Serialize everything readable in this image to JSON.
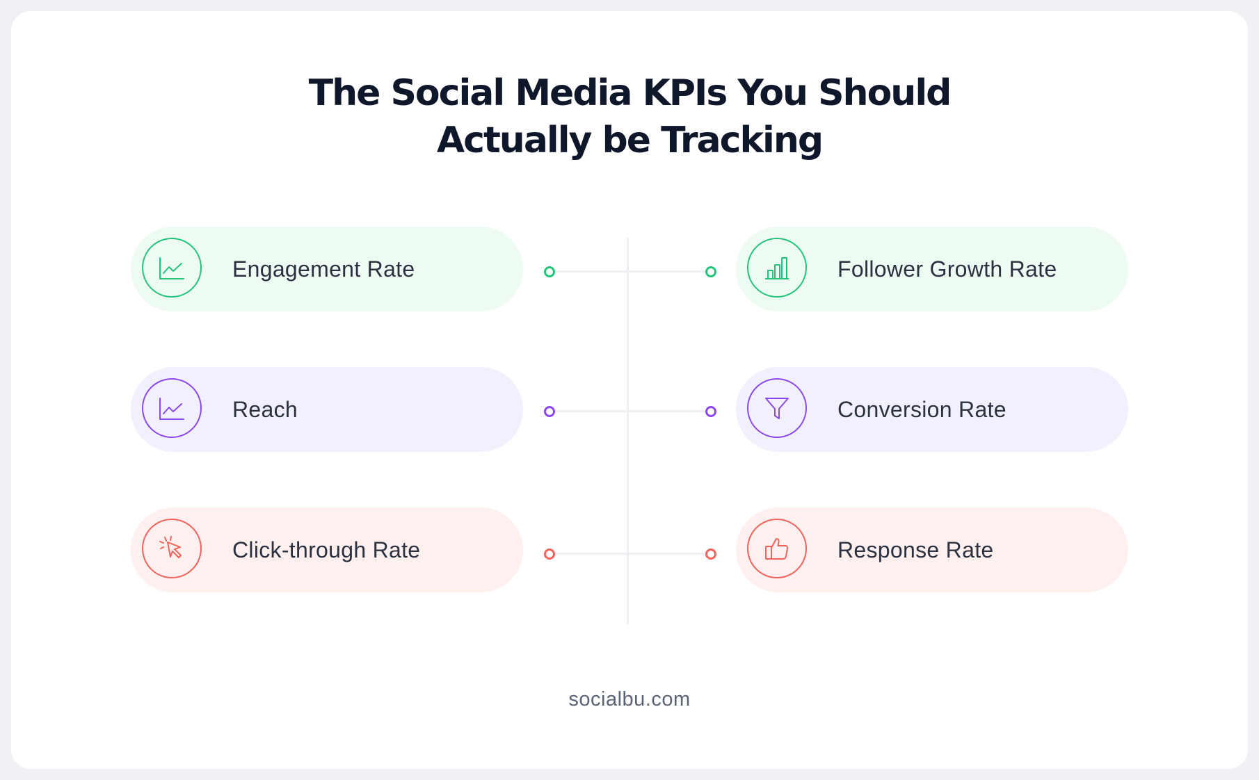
{
  "title": {
    "line1": "The Social Media KPIs You Should",
    "line2": "Actually be Tracking"
  },
  "colors": {
    "green": "#22c47b",
    "green_bg": "#edfbf3",
    "purple": "#8b48f0",
    "purple_bg": "#f2f0fd",
    "red": "#f0625a",
    "red_bg": "#fef0ef"
  },
  "rows": [
    {
      "color": "green",
      "left": {
        "label": "Engagement Rate",
        "icon": "line-chart-icon"
      },
      "right": {
        "label": "Follower Growth Rate",
        "icon": "bar-chart-icon"
      }
    },
    {
      "color": "purple",
      "left": {
        "label": "Reach",
        "icon": "line-chart-icon"
      },
      "right": {
        "label": "Conversion Rate",
        "icon": "funnel-icon"
      }
    },
    {
      "color": "red",
      "left": {
        "label": "Click-through Rate",
        "icon": "cursor-click-icon"
      },
      "right": {
        "label": "Response Rate",
        "icon": "thumbs-up-icon"
      }
    }
  ],
  "footer": "socialbu.com"
}
